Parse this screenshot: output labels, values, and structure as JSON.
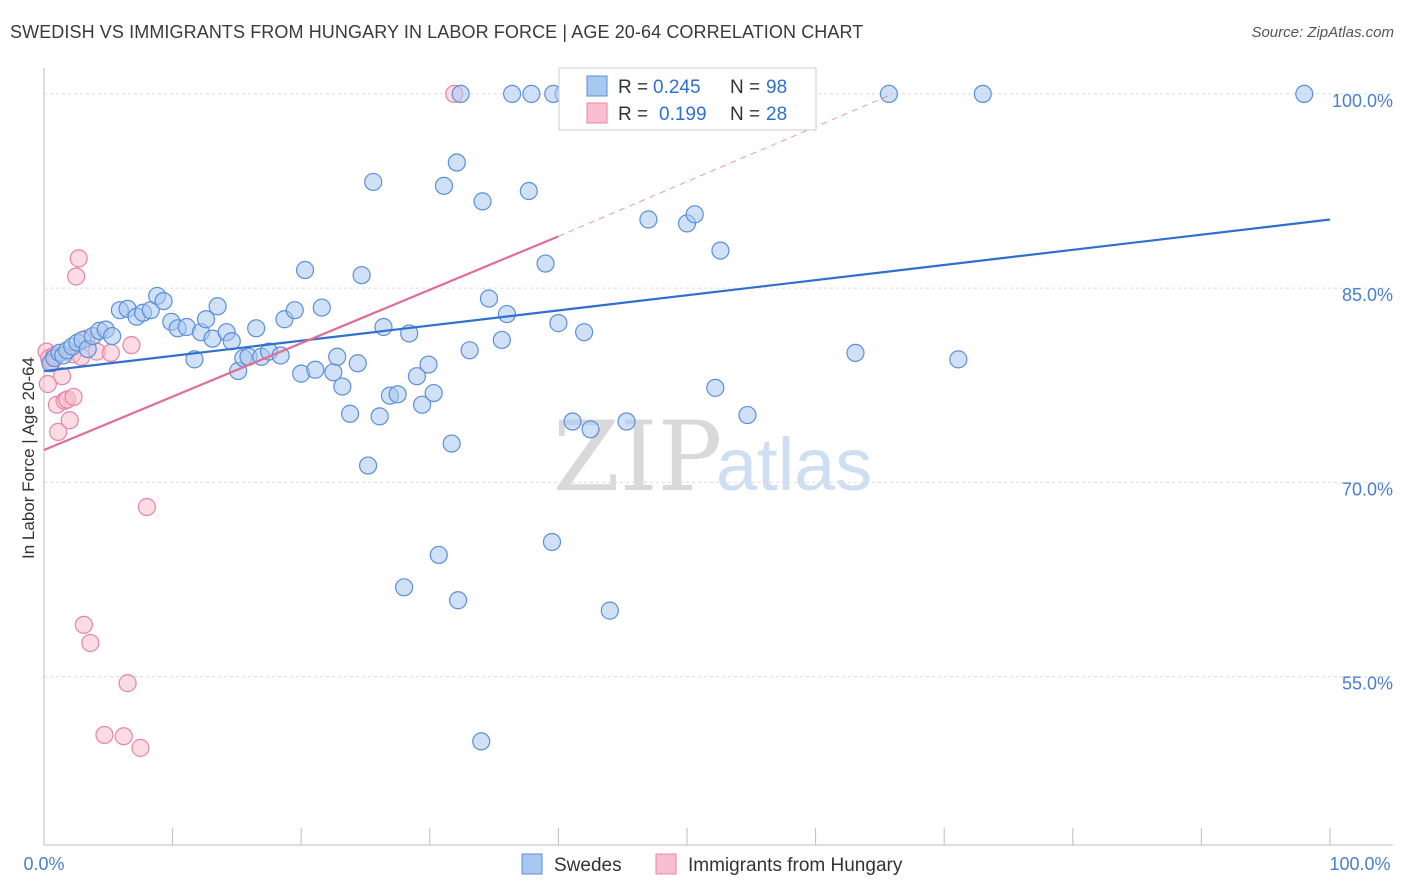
{
  "header": {
    "title": "SWEDISH VS IMMIGRANTS FROM HUNGARY IN LABOR FORCE | AGE 20-64 CORRELATION CHART",
    "source": "Source: ZipAtlas.com"
  },
  "watermark": {
    "zip": "ZIP",
    "atlas": "atlas"
  },
  "colors": {
    "blue_fill": "#a9c8f0",
    "blue_stroke": "#5b8fd8",
    "blue_line": "#2f6fcf",
    "pink_fill": "#f7bfd0",
    "pink_stroke": "#e884a6",
    "pink_line": "#e06d98",
    "grid": "#dcdcdc",
    "tick_text": "#4a7fcf"
  },
  "legend_box": {
    "rows": [
      {
        "r_label": "R = ",
        "r_value": "0.245",
        "n_label": "N = ",
        "n_value": "98"
      },
      {
        "r_label": "R = ",
        "r_value": "0.199",
        "n_label": "N = ",
        "n_value": "28"
      }
    ]
  },
  "chart_data": {
    "type": "scatter",
    "title": "SWEDISH VS IMMIGRANTS FROM HUNGARY IN LABOR FORCE | AGE 20-64 CORRELATION CHART",
    "xlabel": "",
    "ylabel": "In Labor Force | Age 20-64",
    "xlim": [
      0,
      100
    ],
    "ylim": [
      42,
      102
    ],
    "x_tick_labels": [
      "0.0%",
      "100.0%"
    ],
    "y_ticks": [
      55,
      70,
      85,
      100
    ],
    "y_tick_labels": [
      "55.0%",
      "70.0%",
      "85.0%",
      "100.0%"
    ],
    "legend": [
      "Swedes",
      "Immigrants from Hungary"
    ],
    "series": [
      {
        "name": "Swedes",
        "R": 0.245,
        "N": 98,
        "trend": {
          "x0": 0,
          "y0": 78.6,
          "x1": 100,
          "y1": 90.3
        },
        "points": [
          [
            0.5,
            79.2
          ],
          [
            0.8,
            79.6
          ],
          [
            1.2,
            80
          ],
          [
            1.5,
            79.8
          ],
          [
            1.8,
            80.2
          ],
          [
            2.2,
            80.5
          ],
          [
            2.6,
            80.8
          ],
          [
            3.0,
            81
          ],
          [
            3.4,
            80.3
          ],
          [
            3.8,
            81.3
          ],
          [
            4.3,
            81.7
          ],
          [
            4.8,
            81.8
          ],
          [
            5.3,
            81.3
          ],
          [
            5.9,
            83.3
          ],
          [
            6.5,
            83.4
          ],
          [
            7.2,
            82.8
          ],
          [
            7.7,
            83.1
          ],
          [
            8.3,
            83.3
          ],
          [
            8.8,
            84.4
          ],
          [
            9.3,
            84.0
          ],
          [
            9.9,
            82.4
          ],
          [
            10.4,
            81.9
          ],
          [
            11.1,
            82.0
          ],
          [
            11.7,
            79.5
          ],
          [
            12.2,
            81.6
          ],
          [
            12.6,
            82.6
          ],
          [
            13.1,
            81.1
          ],
          [
            13.5,
            83.6
          ],
          [
            14.2,
            81.6
          ],
          [
            14.6,
            80.9
          ],
          [
            15.1,
            78.6
          ],
          [
            15.5,
            79.6
          ],
          [
            15.9,
            79.7
          ],
          [
            16.5,
            81.9
          ],
          [
            16.9,
            79.7
          ],
          [
            17.5,
            80.1
          ],
          [
            18.4,
            79.8
          ],
          [
            18.7,
            82.6
          ],
          [
            19.5,
            83.3
          ],
          [
            20.0,
            78.4
          ],
          [
            20.3,
            86.4
          ],
          [
            21.1,
            78.7
          ],
          [
            21.6,
            83.5
          ],
          [
            22.5,
            78.5
          ],
          [
            22.8,
            79.7
          ],
          [
            23.2,
            77.4
          ],
          [
            23.8,
            75.3
          ],
          [
            24.4,
            79.2
          ],
          [
            24.7,
            86.0
          ],
          [
            25.2,
            71.3
          ],
          [
            25.6,
            93.2
          ],
          [
            26.1,
            75.1
          ],
          [
            26.4,
            82.0
          ],
          [
            26.9,
            76.7
          ],
          [
            27.5,
            76.8
          ],
          [
            28.0,
            61.9
          ],
          [
            28.4,
            81.5
          ],
          [
            29.0,
            78.2
          ],
          [
            29.4,
            76.0
          ],
          [
            29.9,
            79.1
          ],
          [
            30.3,
            76.9
          ],
          [
            30.7,
            64.4
          ],
          [
            31.1,
            92.9
          ],
          [
            31.7,
            73.0
          ],
          [
            32.1,
            94.7
          ],
          [
            32.2,
            60.9
          ],
          [
            32.4,
            100.0
          ],
          [
            33.1,
            80.2
          ],
          [
            34.1,
            91.7
          ],
          [
            34.0,
            50.0
          ],
          [
            34.6,
            84.2
          ],
          [
            35.6,
            81.0
          ],
          [
            36.0,
            83.0
          ],
          [
            37.7,
            92.5
          ],
          [
            37.9,
            100.0
          ],
          [
            39.0,
            86.9
          ],
          [
            39.5,
            65.4
          ],
          [
            40.0,
            82.3
          ],
          [
            40.4,
            100.0
          ],
          [
            41.1,
            74.7
          ],
          [
            42.0,
            81.6
          ],
          [
            42.5,
            74.1
          ],
          [
            44.0,
            60.1
          ],
          [
            44.6,
            100.0
          ],
          [
            45.3,
            74.7
          ],
          [
            47.0,
            90.3
          ],
          [
            50.0,
            90.0
          ],
          [
            50.6,
            90.7
          ],
          [
            52.2,
            77.3
          ],
          [
            52.6,
            87.9
          ],
          [
            54.7,
            75.2
          ],
          [
            63.1,
            80.0
          ],
          [
            65.7,
            100.0
          ],
          [
            71.1,
            79.5
          ],
          [
            73.0,
            100.0
          ],
          [
            98.0,
            100.0
          ],
          [
            39.6,
            100.0
          ],
          [
            36.4,
            100.0
          ]
        ]
      },
      {
        "name": "Immigrants from Hungary",
        "R": 0.199,
        "N": 28,
        "trend": {
          "x0": 0,
          "y0": 72.5,
          "x1": 40,
          "y1": 89.0,
          "dashed_to": {
            "x": 66,
            "y": 100
          }
        },
        "points": [
          [
            0.2,
            80.1
          ],
          [
            0.4,
            79.6
          ],
          [
            0.6,
            79.3
          ],
          [
            0.8,
            79.8
          ],
          [
            1.0,
            76.0
          ],
          [
            1.1,
            73.9
          ],
          [
            1.4,
            78.2
          ],
          [
            1.6,
            76.3
          ],
          [
            1.8,
            76.4
          ],
          [
            2.0,
            74.8
          ],
          [
            2.2,
            79.9
          ],
          [
            2.3,
            76.6
          ],
          [
            2.5,
            85.9
          ],
          [
            2.7,
            87.3
          ],
          [
            2.9,
            79.7
          ],
          [
            3.1,
            59.0
          ],
          [
            3.3,
            81.1
          ],
          [
            3.6,
            57.6
          ],
          [
            4.1,
            80.1
          ],
          [
            4.7,
            50.5
          ],
          [
            5.2,
            80.0
          ],
          [
            6.2,
            50.4
          ],
          [
            6.5,
            54.5
          ],
          [
            6.8,
            80.6
          ],
          [
            7.5,
            49.5
          ],
          [
            8.0,
            68.1
          ],
          [
            31.9,
            100.0
          ],
          [
            0.3,
            77.6
          ]
        ]
      }
    ]
  }
}
